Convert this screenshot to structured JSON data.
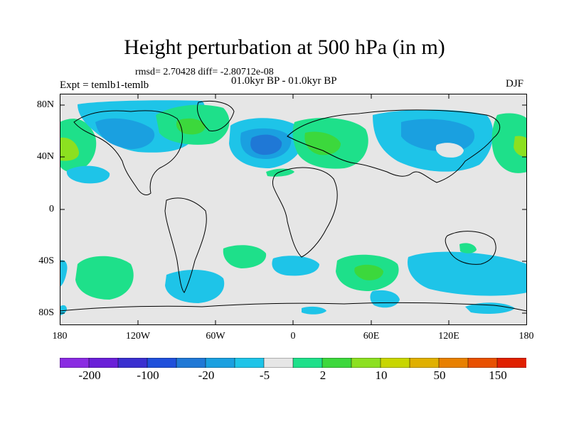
{
  "title": "Height perturbation at 500 hPa (in m)",
  "stats": "rmsd= 2.70428 diff= -2.80712e-08",
  "period": "01.0kyr BP - 01.0kyr BP",
  "expt": "Expt = temlb1-temlb",
  "season": "DJF",
  "map": {
    "lat_labels": [
      "80N",
      "40N",
      "0",
      "40S",
      "80S"
    ],
    "lon_labels": [
      "180",
      "120W",
      "60W",
      "0",
      "60E",
      "120E",
      "180"
    ],
    "land_color": "#e6e6e6"
  },
  "colorbar": {
    "colors": [
      "#8a2be2",
      "#6a1fd8",
      "#3a2fd0",
      "#1f4fdb",
      "#1f78d6",
      "#1aa0e0",
      "#1ec4e8",
      "#e6e6e6",
      "#1ee08a",
      "#3cd83c",
      "#8ce020",
      "#c8d600",
      "#e0b000",
      "#e88000",
      "#e85000",
      "#e02000"
    ],
    "labels": [
      "-200",
      "-100",
      "-20",
      "-5",
      "2",
      "10",
      "50",
      "150"
    ]
  }
}
